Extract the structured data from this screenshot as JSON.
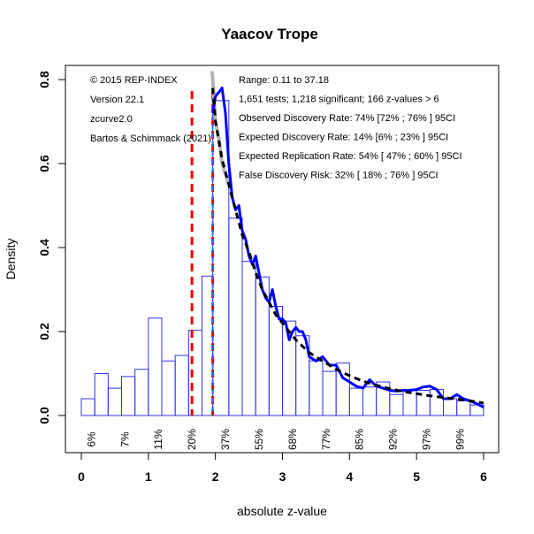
{
  "chart_data": {
    "type": "bar",
    "title": "Yaacov Trope",
    "xlabel": "absolute z-value",
    "ylabel": "Density",
    "xlim": [
      0,
      6
    ],
    "ylim": [
      -0.08,
      0.82
    ],
    "x_ticks": [
      "0",
      "1",
      "2",
      "3",
      "4",
      "5",
      "6"
    ],
    "y_ticks": [
      "0.0",
      "0.2",
      "0.4",
      "0.6",
      "0.8"
    ],
    "bin_width": 0.2,
    "histogram": [
      {
        "x0": 0.0,
        "x1": 0.2,
        "density": 0.04
      },
      {
        "x0": 0.2,
        "x1": 0.4,
        "density": 0.1
      },
      {
        "x0": 0.4,
        "x1": 0.6,
        "density": 0.065
      },
      {
        "x0": 0.6,
        "x1": 0.8,
        "density": 0.093
      },
      {
        "x0": 0.8,
        "x1": 1.0,
        "density": 0.11
      },
      {
        "x0": 1.0,
        "x1": 1.2,
        "density": 0.232
      },
      {
        "x0": 1.2,
        "x1": 1.4,
        "density": 0.13
      },
      {
        "x0": 1.4,
        "x1": 1.6,
        "density": 0.143
      },
      {
        "x0": 1.6,
        "x1": 1.8,
        "density": 0.203
      },
      {
        "x0": 1.8,
        "x1": 1.96,
        "density": 0.332
      },
      {
        "x0": 1.96,
        "x1": 2.2,
        "density": 0.75
      },
      {
        "x0": 2.2,
        "x1": 2.4,
        "density": 0.47
      },
      {
        "x0": 2.4,
        "x1": 2.6,
        "density": 0.367
      },
      {
        "x0": 2.6,
        "x1": 2.8,
        "density": 0.33
      },
      {
        "x0": 2.8,
        "x1": 3.0,
        "density": 0.26
      },
      {
        "x0": 3.0,
        "x1": 3.2,
        "density": 0.225
      },
      {
        "x0": 3.2,
        "x1": 3.4,
        "density": 0.19
      },
      {
        "x0": 3.4,
        "x1": 3.6,
        "density": 0.13
      },
      {
        "x0": 3.6,
        "x1": 3.8,
        "density": 0.105
      },
      {
        "x0": 3.8,
        "x1": 4.0,
        "density": 0.125
      },
      {
        "x0": 4.0,
        "x1": 4.2,
        "density": 0.065
      },
      {
        "x0": 4.2,
        "x1": 4.4,
        "density": 0.068
      },
      {
        "x0": 4.4,
        "x1": 4.6,
        "density": 0.08
      },
      {
        "x0": 4.6,
        "x1": 4.8,
        "density": 0.05
      },
      {
        "x0": 4.8,
        "x1": 5.0,
        "density": 0.06
      },
      {
        "x0": 5.0,
        "x1": 5.2,
        "density": 0.06
      },
      {
        "x0": 5.2,
        "x1": 5.4,
        "density": 0.062
      },
      {
        "x0": 5.4,
        "x1": 5.6,
        "density": 0.04
      },
      {
        "x0": 5.6,
        "x1": 5.8,
        "density": 0.035
      },
      {
        "x0": 5.8,
        "x1": 6.0,
        "density": 0.025
      }
    ],
    "observed_density_curve": {
      "name": "observed density (kernel)",
      "color": "#0000ff",
      "x": [
        1.96,
        2.0,
        2.05,
        2.1,
        2.15,
        2.2,
        2.25,
        2.3,
        2.35,
        2.4,
        2.45,
        2.5,
        2.55,
        2.6,
        2.65,
        2.7,
        2.75,
        2.8,
        2.85,
        2.9,
        2.95,
        3.0,
        3.05,
        3.1,
        3.15,
        3.2,
        3.25,
        3.3,
        3.35,
        3.4,
        3.5,
        3.6,
        3.7,
        3.8,
        3.9,
        4.0,
        4.1,
        4.2,
        4.3,
        4.4,
        4.5,
        4.6,
        4.7,
        4.8,
        4.9,
        5.0,
        5.1,
        5.2,
        5.3,
        5.4,
        5.5,
        5.6,
        5.7,
        5.8,
        5.9,
        6.0
      ],
      "y": [
        0.72,
        0.76,
        0.77,
        0.78,
        0.72,
        0.6,
        0.52,
        0.49,
        0.5,
        0.44,
        0.42,
        0.38,
        0.36,
        0.38,
        0.34,
        0.3,
        0.28,
        0.27,
        0.3,
        0.26,
        0.23,
        0.23,
        0.22,
        0.18,
        0.2,
        0.21,
        0.2,
        0.2,
        0.18,
        0.14,
        0.13,
        0.14,
        0.12,
        0.12,
        0.09,
        0.08,
        0.07,
        0.065,
        0.085,
        0.07,
        0.065,
        0.06,
        0.058,
        0.06,
        0.06,
        0.062,
        0.068,
        0.07,
        0.062,
        0.04,
        0.04,
        0.05,
        0.04,
        0.035,
        0.028,
        0.02
      ]
    },
    "fitted_density_curve": {
      "name": "z-curve fit",
      "color": "#000000",
      "style": "dashed",
      "x": [
        1.96,
        2.0,
        2.1,
        2.2,
        2.3,
        2.4,
        2.5,
        2.6,
        2.7,
        2.8,
        2.9,
        3.0,
        3.2,
        3.4,
        3.6,
        3.8,
        4.0,
        4.2,
        4.4,
        4.6,
        4.8,
        5.0,
        5.2,
        5.4,
        5.6,
        5.8,
        6.0
      ],
      "y": [
        0.78,
        0.7,
        0.61,
        0.55,
        0.49,
        0.43,
        0.39,
        0.34,
        0.3,
        0.27,
        0.24,
        0.22,
        0.18,
        0.15,
        0.13,
        0.11,
        0.095,
        0.082,
        0.072,
        0.064,
        0.057,
        0.052,
        0.047,
        0.043,
        0.039,
        0.035,
        0.03
      ]
    },
    "projected_curve": {
      "name": "projected density",
      "color": "#b4b4b4",
      "x": [
        1.95,
        1.97,
        2.0,
        2.05,
        2.1,
        2.2
      ],
      "y": [
        0.82,
        0.78,
        0.7,
        0.66,
        0.6,
        0.55
      ]
    },
    "vertical_lines": [
      {
        "name": "significance criterion red",
        "x": 1.65,
        "color": "#ee0000",
        "style": "dashed"
      },
      {
        "name": "significance criterion 1.96 red",
        "x": 1.96,
        "color": "#ee0000",
        "style": "dashed"
      },
      {
        "name": "significance criterion 1.96 blue",
        "x": 1.96,
        "color": "#3366ff",
        "style": "dashed"
      }
    ],
    "power_labels": [
      {
        "x": 0.15,
        "label": "6%"
      },
      {
        "x": 0.65,
        "label": "7%"
      },
      {
        "x": 1.15,
        "label": "11%"
      },
      {
        "x": 1.65,
        "label": "20%"
      },
      {
        "x": 2.15,
        "label": "37%"
      },
      {
        "x": 2.65,
        "label": "55%"
      },
      {
        "x": 3.15,
        "label": "68%"
      },
      {
        "x": 3.65,
        "label": "77%"
      },
      {
        "x": 4.15,
        "label": "85%"
      },
      {
        "x": 4.65,
        "label": "92%"
      },
      {
        "x": 5.15,
        "label": "97%"
      },
      {
        "x": 5.65,
        "label": "99%"
      }
    ],
    "annotations_left": [
      "© 2015 REP-INDEX",
      "Version 22.1",
      "zcurve2.0",
      "Bartos & Schimmack (2021)"
    ],
    "annotations_right": [
      "Range: 0.11 to 37.18",
      "1,651 tests; 1,218 significant; 166 z-values > 6",
      "Observed Discovery Rate: 74% [72% ; 76% ] 95CI",
      "Expected Discovery Rate: 14% [6% ; 23% ] 95CI",
      "Expected Replication Rate: 54% [ 47% ; 60% ] 95CI",
      "False Discovery Risk: 32% [ 18% ; 76% ] 95CI"
    ]
  },
  "colors": {
    "bar_stroke": "#3333ee",
    "axis": "#000000"
  }
}
